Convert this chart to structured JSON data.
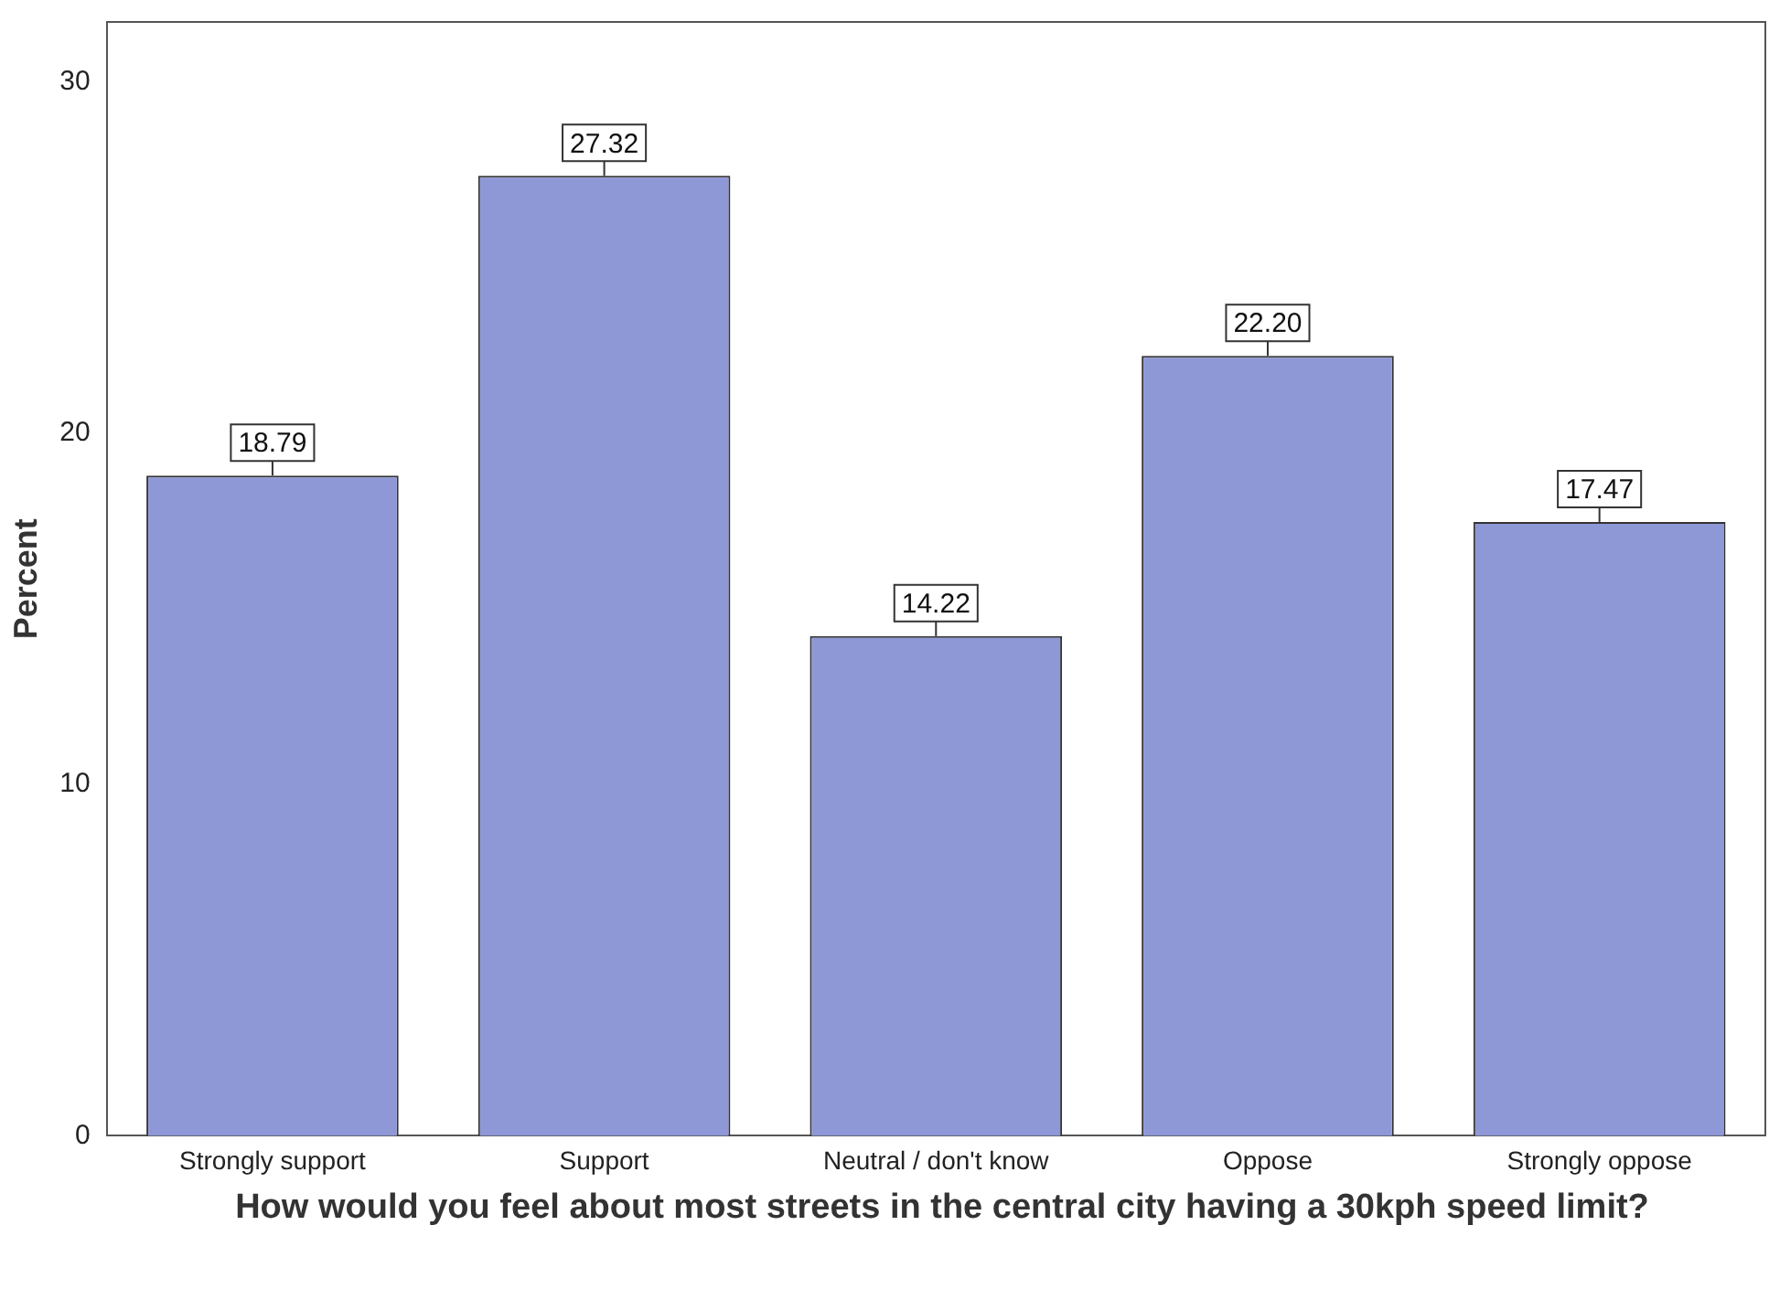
{
  "chart_data": {
    "type": "bar",
    "xlabel": "How would you feel about most streets in the central city having a 30kph speed limit?",
    "ylabel": "Percent",
    "categories": [
      "Strongly support",
      "Support",
      "Neutral / don't know",
      "Oppose",
      "Strongly oppose"
    ],
    "values": [
      18.79,
      27.32,
      14.22,
      22.2,
      17.47
    ],
    "value_labels": [
      "18.79",
      "27.32",
      "14.22",
      "22.20",
      "17.47"
    ],
    "color": "#8f98d6",
    "ylim": [
      0,
      31.7
    ],
    "yticks": [
      0,
      10,
      20,
      30
    ],
    "grid": false
  }
}
